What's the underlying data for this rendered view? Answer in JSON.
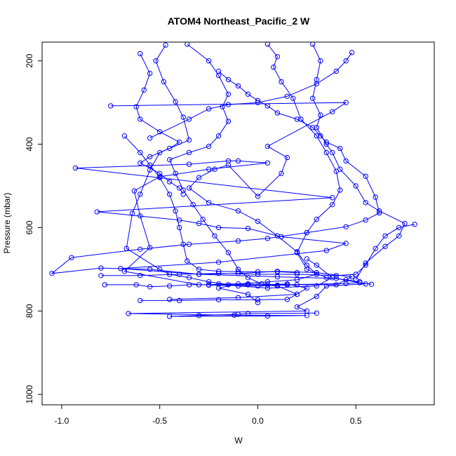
{
  "chart_data": {
    "type": "line",
    "title": "ATOM4 Northeast_Pacific_2 W",
    "xlabel": "W",
    "ylabel": "Pressure (mbar)",
    "xlim": [
      -1.1,
      0.9
    ],
    "ylim": [
      1025,
      155
    ],
    "y_reversed": true,
    "x_ticks": [
      -1.0,
      -0.5,
      0.0,
      0.5
    ],
    "x_tick_labels": [
      "-1.0",
      "-0.5",
      "0.0",
      "0.5"
    ],
    "y_ticks": [
      200,
      400,
      600,
      800,
      1000
    ],
    "y_tick_labels": [
      "200",
      "400",
      "600",
      "800",
      "1000"
    ],
    "grid": false,
    "legend": "none",
    "marker": "open-circle",
    "series": [
      {
        "color": "#0000ff",
        "points": [
          [
            0.3,
            805
          ],
          [
            -0.05,
            806
          ],
          [
            -0.1,
            808
          ],
          [
            -0.3,
            811
          ],
          [
            -0.45,
            813
          ],
          [
            0.05,
            812
          ],
          [
            0.25,
            811
          ],
          [
            -0.12,
            810
          ],
          [
            -0.66,
            806
          ],
          [
            0.25,
            800
          ],
          [
            0.2,
            790
          ],
          [
            0.3,
            765
          ],
          [
            0.35,
            740
          ],
          [
            0.55,
            735
          ],
          [
            0.4,
            722
          ],
          [
            0.1,
            718
          ],
          [
            -0.3,
            712
          ],
          [
            -0.7,
            698
          ],
          [
            -0.2,
            683
          ],
          [
            0.35,
            655
          ],
          [
            0.45,
            638
          ],
          [
            0.12,
            622
          ],
          [
            -0.05,
            602
          ],
          [
            -0.2,
            600
          ],
          [
            -0.3,
            590
          ],
          [
            -0.4,
            582
          ],
          [
            -0.82,
            562
          ],
          [
            0.38,
            528
          ],
          [
            -0.93,
            457
          ],
          [
            -0.35,
            448
          ],
          [
            -0.15,
            440
          ],
          [
            -0.1,
            440
          ],
          [
            0.05,
            445
          ],
          [
            -0.25,
            460
          ],
          [
            -0.5,
            478
          ],
          [
            -0.63,
            512
          ],
          [
            -0.6,
            572
          ],
          [
            -0.55,
            648
          ],
          [
            -0.68,
            705
          ],
          [
            -0.3,
            737
          ],
          [
            0.15,
            737
          ],
          [
            0.45,
            734
          ],
          [
            0.52,
            732
          ],
          [
            0.58,
            736
          ]
        ]
      },
      {
        "color": "#0000ff",
        "points": [
          [
            -0.45,
            772
          ],
          [
            -0.1,
            768
          ],
          [
            0.2,
            760
          ],
          [
            0.1,
            740
          ],
          [
            -0.05,
            735
          ],
          [
            -0.2,
            735
          ],
          [
            -0.25,
            738
          ],
          [
            0.0,
            740
          ],
          [
            0.2,
            737
          ],
          [
            0.4,
            737
          ],
          [
            0.48,
            718
          ],
          [
            0.3,
            708
          ],
          [
            0.1,
            705
          ],
          [
            -0.1,
            710
          ],
          [
            -0.3,
            712
          ],
          [
            -0.55,
            700
          ],
          [
            -0.8,
            697
          ],
          [
            -1.05,
            710
          ],
          [
            -0.95,
            672
          ],
          [
            -0.6,
            652
          ],
          [
            -0.35,
            640
          ],
          [
            -0.1,
            632
          ],
          [
            0.05,
            626
          ],
          [
            0.25,
            612
          ],
          [
            0.45,
            598
          ],
          [
            0.55,
            582
          ],
          [
            0.62,
            565
          ],
          [
            0.6,
            527
          ],
          [
            0.55,
            477
          ],
          [
            0.45,
            440
          ],
          [
            0.42,
            410
          ],
          [
            0.35,
            395
          ],
          [
            0.32,
            380
          ],
          [
            0.28,
            360
          ],
          [
            0.2,
            340
          ],
          [
            0.1,
            325
          ],
          [
            0.05,
            308
          ],
          [
            0.0,
            295
          ],
          [
            -0.05,
            280
          ],
          [
            -0.1,
            260
          ],
          [
            -0.15,
            245
          ],
          [
            -0.2,
            225
          ]
        ]
      },
      {
        "color": "#0000ff",
        "points": [
          [
            -0.75,
            308
          ],
          [
            0.45,
            300
          ],
          [
            0.38,
            322
          ],
          [
            0.05,
            405
          ],
          [
            0.15,
            432
          ],
          [
            0.12,
            470
          ],
          [
            0.0,
            525
          ],
          [
            -0.15,
            450
          ],
          [
            -0.22,
            460
          ],
          [
            -0.3,
            480
          ],
          [
            -0.35,
            505
          ],
          [
            -0.25,
            540
          ],
          [
            -0.1,
            560
          ],
          [
            0.0,
            585
          ],
          [
            0.1,
            620
          ],
          [
            0.2,
            658
          ],
          [
            0.25,
            690
          ],
          [
            0.3,
            712
          ],
          [
            0.2,
            725
          ],
          [
            0.05,
            730
          ],
          [
            -0.1,
            735
          ],
          [
            -0.2,
            745
          ],
          [
            -0.05,
            760
          ],
          [
            0.0,
            780
          ]
        ]
      },
      {
        "color": "#0000ff",
        "points": [
          [
            -0.47,
            162
          ],
          [
            -0.52,
            200
          ],
          [
            -0.48,
            250
          ],
          [
            -0.42,
            298
          ],
          [
            -0.38,
            335
          ],
          [
            -0.35,
            390
          ],
          [
            -0.5,
            420
          ],
          [
            -0.55,
            462
          ],
          [
            -0.6,
            520
          ],
          [
            -0.64,
            566
          ],
          [
            -0.67,
            650
          ],
          [
            -0.5,
            700
          ],
          [
            -0.45,
            712
          ],
          [
            -0.35,
            720
          ],
          [
            -0.25,
            730
          ],
          [
            -0.1,
            740
          ],
          [
            0.05,
            745
          ],
          [
            0.3,
            740
          ],
          [
            0.38,
            720
          ],
          [
            0.3,
            690
          ],
          [
            0.25,
            675
          ]
        ]
      },
      {
        "color": "#0000ff",
        "points": [
          [
            -0.36,
            160
          ],
          [
            -0.25,
            200
          ],
          [
            -0.2,
            235
          ],
          [
            -0.15,
            280
          ],
          [
            -0.18,
            310
          ],
          [
            -0.15,
            345
          ],
          [
            -0.2,
            380
          ],
          [
            -0.25,
            405
          ],
          [
            -0.35,
            420
          ],
          [
            -0.45,
            437
          ],
          [
            -0.42,
            470
          ],
          [
            -0.38,
            510
          ],
          [
            -0.33,
            545
          ],
          [
            -0.28,
            580
          ],
          [
            -0.22,
            620
          ],
          [
            -0.15,
            660
          ],
          [
            -0.1,
            700
          ],
          [
            -0.05,
            720
          ],
          [
            0.02,
            735
          ],
          [
            0.1,
            738
          ]
        ]
      },
      {
        "color": "#0000ff",
        "points": [
          [
            0.05,
            160
          ],
          [
            0.1,
            190
          ],
          [
            0.08,
            215
          ],
          [
            0.12,
            250
          ],
          [
            0.18,
            290
          ],
          [
            0.22,
            340
          ],
          [
            0.3,
            380
          ],
          [
            0.35,
            420
          ],
          [
            0.4,
            465
          ],
          [
            0.42,
            510
          ],
          [
            0.38,
            545
          ],
          [
            0.3,
            580
          ],
          [
            0.25,
            612
          ],
          [
            0.2,
            660
          ],
          [
            0.25,
            700
          ],
          [
            0.35,
            720
          ],
          [
            0.45,
            725
          ],
          [
            0.52,
            730
          ]
        ]
      },
      {
        "color": "#0000ff",
        "points": [
          [
            -0.55,
            385
          ],
          [
            -0.35,
            340
          ],
          [
            -0.25,
            315
          ],
          [
            -0.15,
            305
          ],
          [
            0.0,
            300
          ],
          [
            0.15,
            285
          ],
          [
            0.3,
            255
          ],
          [
            0.4,
            225
          ],
          [
            0.45,
            200
          ],
          [
            0.48,
            180
          ]
        ]
      },
      {
        "color": "#0000ff",
        "points": [
          [
            -0.8,
            715
          ],
          [
            -0.6,
            715
          ],
          [
            -0.4,
            712
          ],
          [
            -0.2,
            710
          ],
          [
            0.0,
            712
          ],
          [
            0.2,
            712
          ],
          [
            0.4,
            715
          ],
          [
            0.5,
            712
          ],
          [
            0.55,
            690
          ],
          [
            0.6,
            650
          ],
          [
            0.65,
            620
          ],
          [
            0.72,
            600
          ],
          [
            0.8,
            592
          ]
        ]
      },
      {
        "color": "#0000ff",
        "points": [
          [
            -0.68,
            380
          ],
          [
            -0.6,
            420
          ],
          [
            -0.55,
            450
          ],
          [
            -0.5,
            480
          ],
          [
            -0.45,
            520
          ],
          [
            -0.42,
            560
          ],
          [
            -0.4,
            600
          ],
          [
            -0.38,
            640
          ],
          [
            -0.36,
            680
          ],
          [
            -0.3,
            700
          ],
          [
            -0.2,
            705
          ],
          [
            -0.1,
            706
          ],
          [
            0.0,
            706
          ],
          [
            0.1,
            706
          ],
          [
            0.2,
            708
          ]
        ]
      },
      {
        "color": "#0000ff",
        "points": [
          [
            -0.6,
            775
          ],
          [
            -0.4,
            775
          ],
          [
            -0.2,
            773
          ],
          [
            0.0,
            773
          ],
          [
            0.15,
            772
          ],
          [
            0.2,
            760
          ],
          [
            0.25,
            745
          ],
          [
            0.15,
            735
          ],
          [
            0.05,
            737
          ],
          [
            -0.05,
            737
          ],
          [
            -0.15,
            737
          ],
          [
            -0.25,
            737
          ],
          [
            -0.35,
            737
          ],
          [
            -0.45,
            740
          ],
          [
            -0.55,
            742
          ],
          [
            -0.62,
            737
          ],
          [
            -0.78,
            737
          ]
        ]
      },
      {
        "color": "#0000ff",
        "points": [
          [
            -0.6,
            183
          ],
          [
            -0.55,
            230
          ],
          [
            -0.58,
            270
          ],
          [
            -0.62,
            310
          ],
          [
            -0.6,
            340
          ],
          [
            -0.5,
            370
          ],
          [
            -0.4,
            395
          ],
          [
            -0.45,
            410
          ],
          [
            -0.55,
            430
          ],
          [
            -0.6,
            445
          ],
          [
            -0.5,
            470
          ],
          [
            -0.45,
            490
          ],
          [
            -0.4,
            505
          ],
          [
            -0.38,
            520
          ]
        ]
      },
      {
        "color": "#0000ff",
        "points": [
          [
            0.28,
            160
          ],
          [
            0.32,
            200
          ],
          [
            0.3,
            245
          ],
          [
            0.28,
            290
          ],
          [
            0.32,
            330
          ],
          [
            0.3,
            360
          ],
          [
            0.35,
            400
          ],
          [
            0.38,
            420
          ],
          [
            0.42,
            460
          ],
          [
            0.5,
            500
          ],
          [
            0.55,
            540
          ],
          [
            0.62,
            560
          ],
          [
            0.75,
            590
          ],
          [
            0.72,
            620
          ],
          [
            0.65,
            645
          ],
          [
            0.55,
            685
          ],
          [
            0.5,
            725
          ]
        ]
      }
    ]
  }
}
